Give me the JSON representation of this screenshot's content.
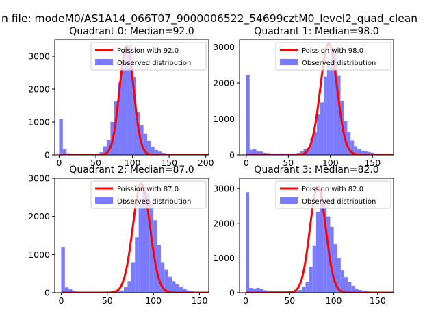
{
  "suptitle": "n file: modeM0/AS1A14_066T07_9000006522_54699cztM0_level2_quad_clean",
  "colors": {
    "hist": "#7b7bff",
    "poisson": "#ff0000",
    "axis": "#000000",
    "background": "#ffffff"
  },
  "chart_data": [
    {
      "type": "bar",
      "title": "Quadrant 0: Median=92.0",
      "xlim": [
        -6,
        204
      ],
      "ylim": [
        0,
        3500
      ],
      "xticks": [
        0,
        50,
        100,
        150,
        200
      ],
      "yticks": [
        0,
        1000,
        2000,
        3000
      ],
      "bin_width": 5,
      "legend": {
        "position": "top-right",
        "poisson_label": "Poission with 92.0",
        "hist_label": "Observed distribution"
      },
      "poisson_mean": 92,
      "poisson_peak": 3310,
      "hist_x": [
        0,
        5,
        10,
        15,
        20,
        25,
        30,
        35,
        40,
        45,
        50,
        55,
        60,
        65,
        70,
        75,
        80,
        85,
        90,
        95,
        100,
        105,
        110,
        115,
        120,
        125,
        130,
        135,
        140,
        145,
        150,
        155
      ],
      "hist_y": [
        1100,
        180,
        50,
        20,
        20,
        15,
        15,
        15,
        20,
        30,
        40,
        80,
        260,
        460,
        1000,
        1630,
        2200,
        2900,
        3300,
        3360,
        2370,
        1300,
        900,
        650,
        430,
        250,
        150,
        100,
        60,
        40,
        20,
        10
      ]
    },
    {
      "type": "bar",
      "title": "Quadrant 1: Median=98.0",
      "xlim": [
        -8,
        175
      ],
      "ylim": [
        0,
        3200
      ],
      "xticks": [
        0,
        50,
        100,
        150
      ],
      "yticks": [
        0,
        1000,
        2000,
        3000
      ],
      "bin_width": 4,
      "legend": {
        "position": "top-right",
        "poisson_label": "Poission with 98.0",
        "hist_label": "Observed distribution"
      },
      "poisson_mean": 98,
      "poisson_peak": 3100,
      "hist_x": [
        0,
        4,
        8,
        12,
        16,
        20,
        24,
        28,
        32,
        36,
        40,
        44,
        48,
        52,
        56,
        60,
        64,
        68,
        72,
        76,
        80,
        84,
        88,
        92,
        96,
        100,
        104,
        108,
        112,
        116,
        120,
        124,
        128,
        132,
        136,
        140,
        144,
        148,
        152,
        156
      ],
      "hist_y": [
        2230,
        140,
        160,
        100,
        90,
        60,
        50,
        40,
        40,
        40,
        40,
        40,
        40,
        40,
        40,
        60,
        100,
        160,
        200,
        450,
        640,
        1120,
        1460,
        2180,
        2500,
        2980,
        2860,
        2200,
        1500,
        940,
        650,
        410,
        240,
        160,
        120,
        100,
        80,
        60,
        40,
        20
      ]
    },
    {
      "type": "bar",
      "title": "Quadrant 2: Median=87.0",
      "xlim": [
        -7,
        160
      ],
      "ylim": [
        0,
        3000
      ],
      "xticks": [
        0,
        50,
        100,
        150
      ],
      "yticks": [
        0,
        1000,
        2000,
        3000
      ],
      "bin_width": 4,
      "legend": {
        "position": "top-right",
        "poisson_label": "Poission with 87.0",
        "hist_label": "Observed distribution"
      },
      "poisson_mean": 87,
      "poisson_peak": 2860,
      "hist_x": [
        0,
        4,
        8,
        12,
        16,
        20,
        24,
        28,
        32,
        36,
        40,
        44,
        48,
        52,
        56,
        60,
        64,
        68,
        72,
        76,
        80,
        84,
        88,
        92,
        96,
        100,
        104,
        108,
        112,
        116,
        120,
        124,
        128,
        132,
        136,
        140,
        144,
        148
      ],
      "hist_y": [
        1200,
        140,
        100,
        50,
        30,
        20,
        20,
        20,
        20,
        20,
        20,
        20,
        20,
        20,
        20,
        40,
        60,
        150,
        300,
        800,
        1450,
        2350,
        2750,
        2600,
        2400,
        1900,
        1250,
        800,
        600,
        420,
        300,
        220,
        150,
        100,
        60,
        40,
        20,
        10
      ]
    },
    {
      "type": "bar",
      "title": "Quadrant 3: Median=82.0",
      "xlim": [
        -7,
        168
      ],
      "ylim": [
        0,
        3300
      ],
      "xticks": [
        0,
        50,
        100,
        150
      ],
      "yticks": [
        0,
        1000,
        2000,
        3000
      ],
      "bin_width": 4,
      "legend": {
        "position": "top-right",
        "poisson_label": "Poission with 82.0",
        "hist_label": "Observed distribution"
      },
      "poisson_mean": 82,
      "poisson_peak": 3050,
      "hist_x": [
        0,
        4,
        8,
        12,
        16,
        20,
        24,
        28,
        32,
        36,
        40,
        44,
        48,
        52,
        56,
        60,
        64,
        68,
        72,
        76,
        80,
        84,
        88,
        92,
        96,
        100,
        104,
        108,
        112,
        116,
        120,
        124,
        128,
        132,
        136,
        140,
        144,
        148,
        152
      ],
      "hist_y": [
        2900,
        140,
        120,
        140,
        100,
        70,
        50,
        40,
        40,
        40,
        40,
        40,
        40,
        40,
        40,
        80,
        180,
        300,
        750,
        1350,
        2330,
        3000,
        2600,
        2200,
        1900,
        1400,
        1000,
        650,
        450,
        300,
        200,
        120,
        80,
        60,
        40,
        30,
        20,
        10,
        10
      ]
    }
  ]
}
